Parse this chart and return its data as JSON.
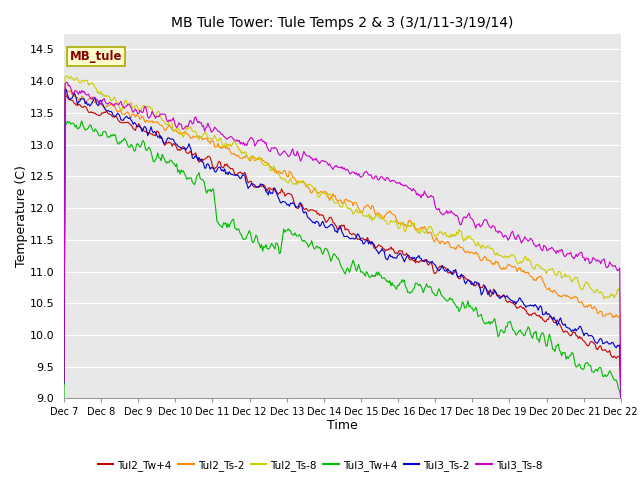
{
  "title": "MB Tule Tower: Tule Temps 2 & 3 (3/1/11-3/19/14)",
  "xlabel": "Time",
  "ylabel": "Temperature (C)",
  "ylim": [
    9.0,
    14.75
  ],
  "yticks": [
    9.0,
    9.5,
    10.0,
    10.5,
    11.0,
    11.5,
    12.0,
    12.5,
    13.0,
    13.5,
    14.0,
    14.5
  ],
  "xtick_labels": [
    "Dec 7",
    "Dec 8",
    "Dec 9",
    "Dec 10",
    "Dec 11",
    "Dec 12",
    "Dec 13",
    "Dec 14",
    "Dec 15",
    "Dec 16",
    "Dec 17",
    "Dec 18",
    "Dec 19",
    "Dec 20",
    "Dec 21",
    "Dec 22"
  ],
  "num_points": 500,
  "series": [
    {
      "name": "Tul2_Tw+4",
      "color": "#cc0000",
      "lw": 0.8
    },
    {
      "name": "Tul2_Ts-2",
      "color": "#ff8800",
      "lw": 0.8
    },
    {
      "name": "Tul2_Ts-8",
      "color": "#cccc00",
      "lw": 0.8
    },
    {
      "name": "Tul3_Tw+4",
      "color": "#00bb00",
      "lw": 0.8
    },
    {
      "name": "Tul3_Ts-2",
      "color": "#0000cc",
      "lw": 0.8
    },
    {
      "name": "Tul3_Ts-8",
      "color": "#cc00cc",
      "lw": 0.8
    }
  ],
  "annotation_text": "MB_tule",
  "plot_bg_color": "#e8e8e8",
  "title_fontsize": 10,
  "axis_fontsize": 9,
  "tick_fontsize": 8
}
